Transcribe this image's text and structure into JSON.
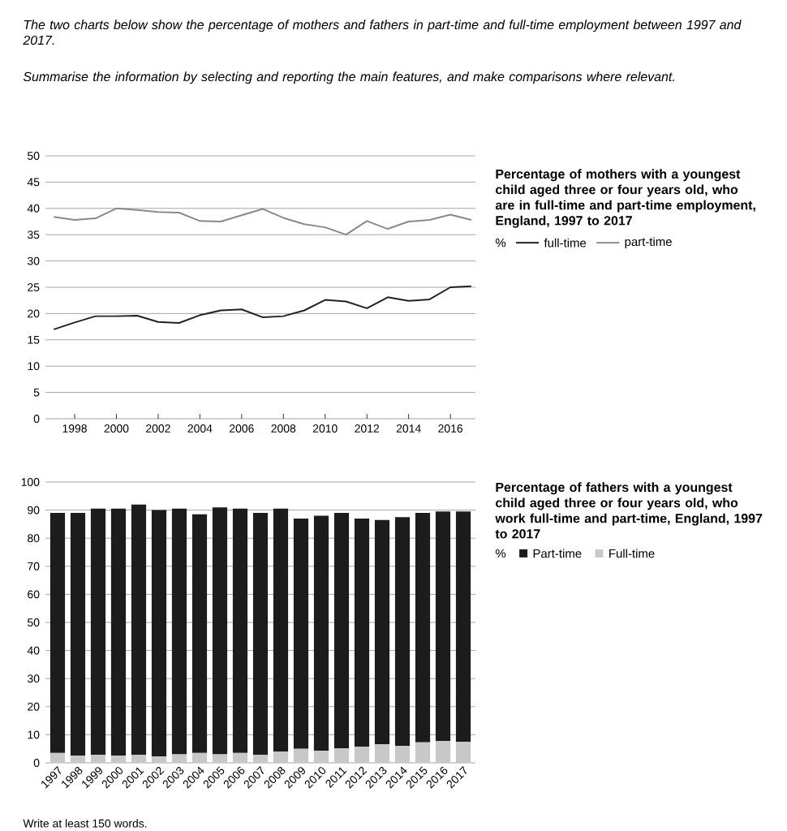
{
  "chart_data": [
    {
      "type": "line",
      "annotations": [
        "The two charts below show the percentage of mothers and fathers in part-time and full-time employment between 1997 and 2017.",
        "Summarise the information by selecting and reporting the main features, and make comparisons where relevant.",
        "Percentage of mothers with a youngest child aged three or four years old, who are in full-time and part-time employment, England, 1997 to 2017"
      ],
      "x": [
        1997,
        1998,
        1999,
        2000,
        2001,
        2002,
        2003,
        2004,
        2005,
        2006,
        2007,
        2008,
        2009,
        2010,
        2011,
        2012,
        2013,
        2014,
        2015,
        2016,
        2017
      ],
      "series": [
        {
          "name": "full-time",
          "color": "#222222",
          "values": [
            17.0,
            18.3,
            19.5,
            19.5,
            19.6,
            18.4,
            18.2,
            19.7,
            20.6,
            20.8,
            19.3,
            19.5,
            20.6,
            22.6,
            22.3,
            21.0,
            23.1,
            22.4,
            22.7,
            25.0,
            25.2
          ]
        },
        {
          "name": "part-time",
          "color": "#8a8a8a",
          "values": [
            38.4,
            37.8,
            38.1,
            40.0,
            39.7,
            39.3,
            39.2,
            37.6,
            37.5,
            38.7,
            39.9,
            38.2,
            37.0,
            36.4,
            35.0,
            37.6,
            36.1,
            37.5,
            37.8,
            38.8,
            37.8
          ]
        }
      ],
      "xlim": [
        1996.6,
        2017.2
      ],
      "xticks": [
        1998,
        2000,
        2002,
        2004,
        2006,
        2008,
        2010,
        2012,
        2014,
        2016
      ],
      "ylim": [
        0,
        50
      ],
      "yticks": [
        0,
        5,
        10,
        15,
        20,
        25,
        30,
        35,
        40,
        45,
        50
      ],
      "grid": "y",
      "legend": "right",
      "legend_title": "%"
    },
    {
      "type": "bar",
      "stacked": true,
      "annotations": [
        "Percentage of fathers with a youngest child aged three or four years old, who work full-time and part-time, England, 1997 to 2017",
        "Write at least 150 words."
      ],
      "categories": [
        "1997",
        "1998",
        "1999",
        "2000",
        "2001",
        "2002",
        "2003",
        "2004",
        "2005",
        "2006",
        "2007",
        "2008",
        "2009",
        "2010",
        "2011",
        "2012",
        "2013",
        "2014",
        "2015",
        "2016",
        "2017"
      ],
      "series": [
        {
          "name": "Full-time",
          "color": "#c8c8c8",
          "values": [
            3.5,
            2.5,
            2.8,
            2.5,
            2.8,
            2.3,
            3.0,
            3.5,
            3.0,
            3.5,
            2.8,
            4.0,
            5.0,
            4.3,
            5.2,
            5.7,
            6.6,
            6.0,
            7.3,
            7.8,
            7.5
          ]
        },
        {
          "name": "Part-time",
          "color": "#1c1c1c",
          "values": [
            85.5,
            86.5,
            87.7,
            88.0,
            89.2,
            87.7,
            87.5,
            85.0,
            88.0,
            87.0,
            86.2,
            86.5,
            82.0,
            83.7,
            83.8,
            81.3,
            79.9,
            81.5,
            81.7,
            81.7,
            82.0
          ]
        }
      ],
      "ylim": [
        0,
        100
      ],
      "yticks": [
        0,
        10,
        20,
        30,
        40,
        50,
        60,
        70,
        80,
        90,
        100
      ],
      "grid": "y",
      "legend": "right",
      "legend_title": "%"
    }
  ]
}
